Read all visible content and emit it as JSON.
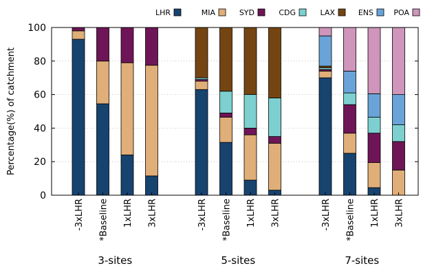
{
  "chart_data": {
    "type": "bar",
    "stacked": true,
    "ylabel": "Percentage(%) of catchment",
    "ylim": [
      0,
      100
    ],
    "yticks": [
      0,
      20,
      40,
      60,
      80,
      100
    ],
    "grid": true,
    "legend_position": "top",
    "legend": [
      {
        "name": "LHR",
        "color": "#17436f"
      },
      {
        "name": "MIA",
        "color": "#e0ae79"
      },
      {
        "name": "SYD",
        "color": "#6e1557"
      },
      {
        "name": "CDG",
        "color": "#7dd0cf"
      },
      {
        "name": "LAX",
        "color": "#744512"
      },
      {
        "name": "ENS",
        "color": "#6aa3d8"
      },
      {
        "name": "POA",
        "color": "#cf95bb"
      }
    ],
    "groups": [
      {
        "label": "3-sites",
        "bars": [
          {
            "label": "-3xLHR",
            "segments": [
              [
                "LHR",
                93
              ],
              [
                "MIA",
                5
              ],
              [
                "SYD",
                2
              ]
            ]
          },
          {
            "label": "*Baseline",
            "segments": [
              [
                "LHR",
                54.5
              ],
              [
                "MIA",
                25.5
              ],
              [
                "SYD",
                20
              ]
            ]
          },
          {
            "label": "1xLHR",
            "segments": [
              [
                "LHR",
                24
              ],
              [
                "MIA",
                55
              ],
              [
                "SYD",
                21
              ]
            ]
          },
          {
            "label": "3xLHR",
            "segments": [
              [
                "LHR",
                11.5
              ],
              [
                "MIA",
                66
              ],
              [
                "SYD",
                22.5
              ]
            ]
          }
        ]
      },
      {
        "label": "5-sites",
        "bars": [
          {
            "label": "-3xLHR",
            "segments": [
              [
                "LHR",
                63
              ],
              [
                "MIA",
                5
              ],
              [
                "SYD",
                1
              ],
              [
                "CDG",
                1
              ],
              [
                "LAX",
                30
              ]
            ]
          },
          {
            "label": "*Baseline",
            "segments": [
              [
                "LHR",
                31.5
              ],
              [
                "MIA",
                15
              ],
              [
                "SYD",
                2.5
              ],
              [
                "CDG",
                13
              ],
              [
                "LAX",
                38
              ]
            ]
          },
          {
            "label": "1xLHR",
            "segments": [
              [
                "LHR",
                9
              ],
              [
                "MIA",
                27
              ],
              [
                "SYD",
                4
              ],
              [
                "CDG",
                20
              ],
              [
                "LAX",
                40
              ]
            ]
          },
          {
            "label": "3xLHR",
            "segments": [
              [
                "LHR",
                3
              ],
              [
                "MIA",
                28
              ],
              [
                "SYD",
                4
              ],
              [
                "CDG",
                23
              ],
              [
                "LAX",
                42
              ]
            ]
          }
        ]
      },
      {
        "label": "7-sites",
        "bars": [
          {
            "label": "-3xLHR",
            "segments": [
              [
                "LHR",
                70
              ],
              [
                "MIA",
                4
              ],
              [
                "SYD",
                1
              ],
              [
                "CDG",
                1
              ],
              [
                "LAX",
                1
              ],
              [
                "ENS",
                18
              ],
              [
                "POA",
                5
              ]
            ]
          },
          {
            "label": "*Baseline",
            "segments": [
              [
                "LHR",
                25
              ],
              [
                "MIA",
                12
              ],
              [
                "SYD",
                17
              ],
              [
                "CDG",
                7
              ],
              [
                "LAX",
                0
              ],
              [
                "ENS",
                13
              ],
              [
                "POA",
                26
              ]
            ]
          },
          {
            "label": "1xLHR",
            "segments": [
              [
                "LHR",
                4.5
              ],
              [
                "MIA",
                15
              ],
              [
                "SYD",
                17.5
              ],
              [
                "CDG",
                9.5
              ],
              [
                "LAX",
                0
              ],
              [
                "ENS",
                14
              ],
              [
                "POA",
                39.5
              ]
            ]
          },
          {
            "label": "3xLHR",
            "segments": [
              [
                "LHR",
                0
              ],
              [
                "MIA",
                15
              ],
              [
                "SYD",
                17
              ],
              [
                "CDG",
                10
              ],
              [
                "LAX",
                0
              ],
              [
                "ENS",
                18
              ],
              [
                "POA",
                40
              ]
            ]
          }
        ]
      }
    ]
  }
}
